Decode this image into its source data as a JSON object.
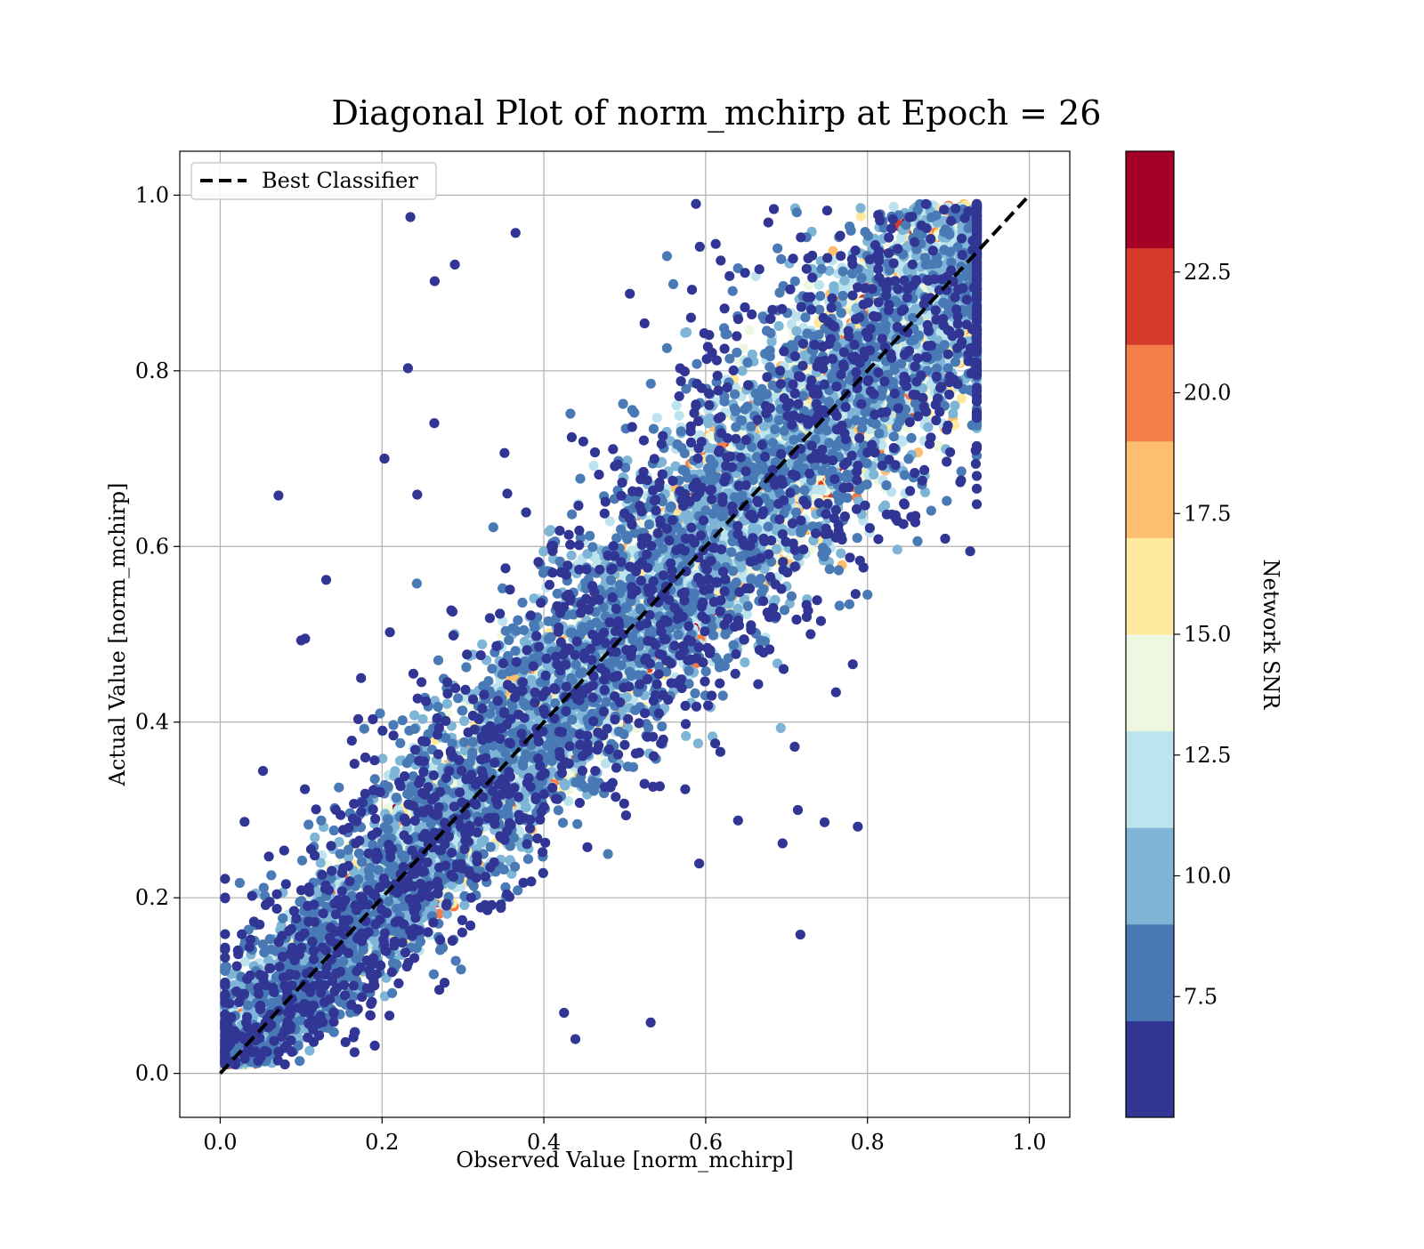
{
  "chart_data": {
    "type": "scatter",
    "title": "Diagonal Plot of norm_mchirp at Epoch = 26",
    "xlabel": "Observed Value [norm_mchirp]",
    "ylabel": "Actual Value [norm_mchirp]",
    "xlim": [
      -0.05,
      1.05
    ],
    "ylim": [
      -0.05,
      1.05
    ],
    "xticks": [
      "0.0",
      "0.2",
      "0.4",
      "0.6",
      "0.8",
      "1.0"
    ],
    "yticks": [
      "0.0",
      "0.2",
      "0.4",
      "0.6",
      "0.8",
      "1.0"
    ],
    "grid": true,
    "legend_position": "upper left",
    "reference_line": {
      "label": "Best Classifier",
      "style": "dashed",
      "color": "#000000",
      "x": [
        0.0,
        1.0
      ],
      "y": [
        0.0,
        1.0
      ]
    },
    "colorbar": {
      "label": "Network SNR",
      "range": [
        5.0,
        25.0
      ],
      "ticks": [
        "7.5",
        "10.0",
        "12.5",
        "15.0",
        "17.5",
        "20.0",
        "22.5"
      ],
      "tick_values": [
        7.5,
        10.0,
        12.5,
        15.0,
        17.5,
        20.0,
        22.5
      ],
      "colormap": "RdYlBu_r",
      "levels": [
        "#313695",
        "#4a7ab6",
        "#7eb4d6",
        "#bde3ef",
        "#eef7e0",
        "#fee99c",
        "#fdbf6f",
        "#f57d4a",
        "#d73a2b",
        "#a50026"
      ]
    },
    "point_count": 20000,
    "points": [
      [
        0.072,
        0.658
      ],
      [
        0.131,
        0.562
      ],
      [
        0.1,
        0.493
      ],
      [
        0.105,
        0.495
      ],
      [
        0.235,
        0.975
      ],
      [
        0.265,
        0.902
      ],
      [
        0.29,
        0.921
      ],
      [
        0.365,
        0.957
      ],
      [
        0.232,
        0.803
      ],
      [
        0.203,
        0.7
      ],
      [
        0.07,
        0.204
      ],
      [
        0.717,
        0.158
      ],
      [
        0.714,
        0.3
      ],
      [
        0.747,
        0.286
      ],
      [
        0.788,
        0.281
      ],
      [
        0.64,
        0.288
      ],
      [
        0.695,
        0.262
      ],
      [
        0.439,
        0.039
      ],
      [
        0.532,
        0.058
      ],
      [
        0.425,
        0.069
      ],
      [
        0.866,
        0.795
      ],
      [
        0.898,
        0.733
      ],
      [
        0.925,
        0.819
      ],
      [
        0.795,
        0.576
      ],
      [
        0.761,
        0.434
      ],
      [
        0.71,
        0.372
      ],
      [
        0.592,
        0.239
      ],
      [
        0.588,
        0.99
      ]
    ]
  }
}
